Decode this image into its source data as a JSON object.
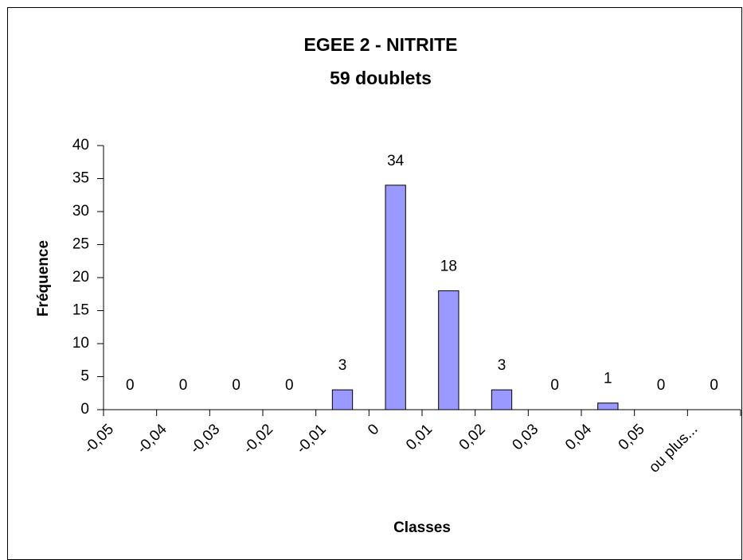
{
  "chart_data": {
    "type": "bar",
    "title": "EGEE 2 - NITRITE",
    "subtitle": "59 doublets",
    "x_label": "Classes",
    "y_label": "Fréquence",
    "categories": [
      "-0,05",
      "-0,04",
      "-0,03",
      "-0,02",
      "-0,01",
      "0",
      "0,01",
      "0,02",
      "0,03",
      "0,04",
      "0,05",
      "ou plus..."
    ],
    "values": [
      0,
      0,
      0,
      0,
      3,
      34,
      18,
      3,
      0,
      1,
      0,
      0
    ],
    "color": "#9999ff",
    "ylim": [
      0,
      40
    ],
    "yticks": [
      0,
      5,
      10,
      15,
      20,
      25,
      30,
      35,
      40
    ],
    "grid": false
  }
}
